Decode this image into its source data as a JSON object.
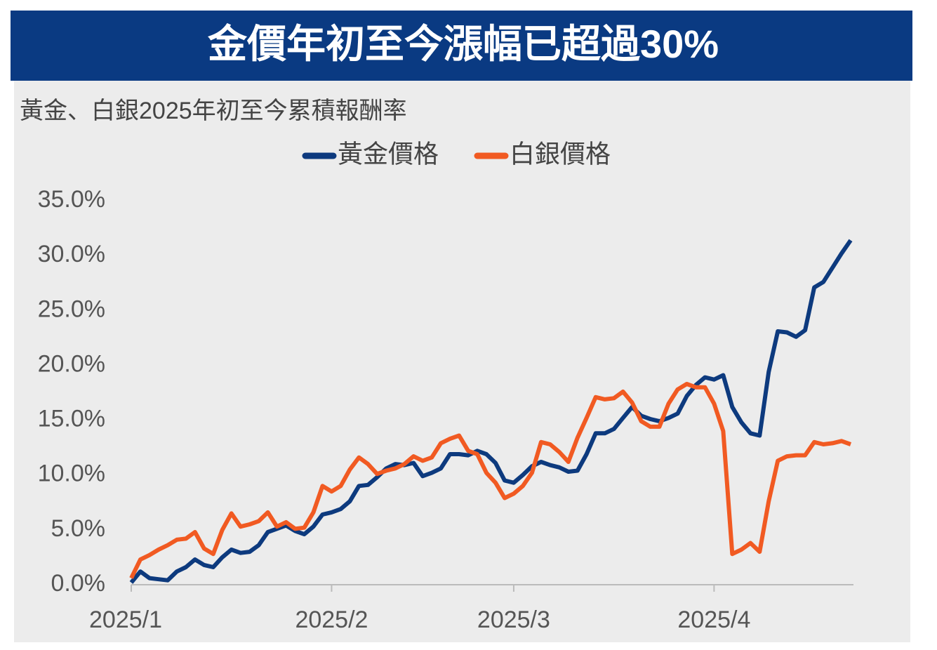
{
  "chart_data": {
    "type": "line",
    "title": "金價年初至今漲幅已超過30%",
    "subtitle": "黃金、白銀2025年初至今累積報酬率",
    "categories": [
      "2025/1",
      null,
      null,
      null,
      null,
      null,
      null,
      null,
      null,
      null,
      null,
      null,
      null,
      null,
      null,
      null,
      null,
      null,
      null,
      null,
      null,
      null,
      "2025/2",
      null,
      null,
      null,
      null,
      null,
      null,
      null,
      null,
      null,
      null,
      null,
      null,
      null,
      null,
      null,
      null,
      null,
      null,
      null,
      "2025/3",
      null,
      null,
      null,
      null,
      null,
      null,
      null,
      null,
      null,
      null,
      null,
      null,
      null,
      null,
      null,
      null,
      null,
      null,
      null,
      null,
      null,
      "2025/4",
      null,
      null,
      null,
      null,
      null,
      null,
      null,
      null,
      null,
      null,
      null,
      null,
      null,
      null,
      null
    ],
    "series": [
      {
        "name": "黃金價格",
        "color": "#0d3a7e",
        "values": [
          0.2,
          1.2,
          0.6,
          0.5,
          0.4,
          1.2,
          1.6,
          2.3,
          1.8,
          1.6,
          2.5,
          3.2,
          2.9,
          3.0,
          3.6,
          4.8,
          5.1,
          5.4,
          4.9,
          4.6,
          5.3,
          6.4,
          6.6,
          6.9,
          7.6,
          9.0,
          9.1,
          9.8,
          10.6,
          11.0,
          10.9,
          11.1,
          9.9,
          10.2,
          10.6,
          11.9,
          11.9,
          11.8,
          12.2,
          11.9,
          11.1,
          9.5,
          9.3,
          10.0,
          10.8,
          11.2,
          10.9,
          10.7,
          10.3,
          10.4,
          11.9,
          13.8,
          13.8,
          14.2,
          15.2,
          16.2,
          15.4,
          15.1,
          14.9,
          15.2,
          15.6,
          17.2,
          18.2,
          18.9,
          18.7,
          19.1,
          16.2,
          14.8,
          13.8,
          13.6,
          19.4,
          23.1,
          23.0,
          22.6,
          23.2,
          27.1,
          27.6,
          28.9,
          30.2,
          31.4
        ]
      },
      {
        "name": "白銀價格",
        "color": "#f15a22",
        "values": [
          0.6,
          2.3,
          2.7,
          3.2,
          3.6,
          4.1,
          4.2,
          4.8,
          3.3,
          2.8,
          5.0,
          6.5,
          5.3,
          5.5,
          5.8,
          6.6,
          5.3,
          5.7,
          5.1,
          5.2,
          6.6,
          9.0,
          8.5,
          9.0,
          10.5,
          11.6,
          11.0,
          10.1,
          10.4,
          10.6,
          11.0,
          11.7,
          11.3,
          11.6,
          12.9,
          13.3,
          13.6,
          12.2,
          11.9,
          10.2,
          9.3,
          7.9,
          8.3,
          9.0,
          10.2,
          13.0,
          12.8,
          12.1,
          11.2,
          13.4,
          15.2,
          17.1,
          16.9,
          17.0,
          17.6,
          16.6,
          14.9,
          14.4,
          14.4,
          16.5,
          17.8,
          18.3,
          18.0,
          18.0,
          16.5,
          14.0,
          2.8,
          3.2,
          3.8,
          3.0,
          7.6,
          11.3,
          11.7,
          11.8,
          11.8,
          13.0,
          12.8,
          12.9,
          13.1,
          12.8
        ]
      }
    ],
    "ylim": [
      0,
      35
    ],
    "yticks": [
      {
        "value": 0,
        "label": "0.0%"
      },
      {
        "value": 5,
        "label": "5.0%"
      },
      {
        "value": 10,
        "label": "10.0%"
      },
      {
        "value": 15,
        "label": "15.0%"
      },
      {
        "value": 20,
        "label": "20.0%"
      },
      {
        "value": 25,
        "label": "25.0%"
      },
      {
        "value": 30,
        "label": "30.0%"
      },
      {
        "value": 35,
        "label": "35.0%"
      }
    ],
    "legend": "top",
    "grid": false
  }
}
